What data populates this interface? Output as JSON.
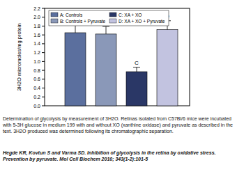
{
  "chart_data": {
    "type": "bar",
    "y_label": "3H2O micromoles/mg protein",
    "categories": [
      "A",
      "B",
      "C",
      "D"
    ],
    "values": [
      1.65,
      1.62,
      0.77,
      1.72
    ],
    "errors": [
      0.18,
      0.17,
      0.1,
      0.2
    ],
    "colors": [
      "#5b6f9e",
      "#8a98b8",
      "#2a3766",
      "#c2c3e0"
    ],
    "legend_entries": [
      "A: Controls",
      "B: Controls + Pyruvate",
      "C: XA + XO",
      "D: XA + XO + Pyruvate"
    ],
    "legend": "upper left",
    "ylim": [
      0,
      2.2
    ],
    "yticks": [
      {
        "value": 0,
        "label": "0.0"
      },
      0.2,
      0.4,
      0.6,
      0.8,
      {
        "value": 1,
        "label": "1.0"
      },
      1.2,
      1.4,
      1.6,
      1.8,
      {
        "value": 2,
        "label": "2.0"
      },
      2.2
    ],
    "grid": false
  },
  "caption": "Determination of glycolysis by measurement of 3H2O. Retinas isolated from C57Bl/6 mice were incubated with 5-3H glucose in medium 199 with and without XO (xanthine oxidase) and pyruvate as described in the text. 3H2O produced was determined following its chromatographic separation.",
  "citation": "Hegde KR, Kovtun S and Varma SD. Inhibition of glycolysis in the retina by oxidative stress. Prevention by pyruvate. Mol Cell Biochem 2010; 343(1-2):101-5"
}
